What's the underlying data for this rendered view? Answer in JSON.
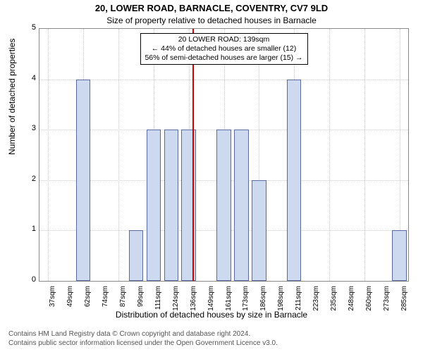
{
  "chart": {
    "type": "histogram",
    "title_main": "20, LOWER ROAD, BARNACLE, COVENTRY, CV7 9LD",
    "title_sub": "Size of property relative to detached houses in Barnacle",
    "xlabel": "Distribution of detached houses by size in Barnacle",
    "ylabel": "Number of detached properties",
    "ylim": [
      0,
      5
    ],
    "ytick_step": 1,
    "bar_fill": "#cdd9ef",
    "bar_stroke": "#5a6aa0",
    "background_color": "#ffffff",
    "grid_color": "#cccccc",
    "border_color": "#888888",
    "marker_value": 139,
    "marker_color": "#d00000",
    "title_fontsize": 13,
    "label_fontsize": 12,
    "tick_fontsize": 10,
    "xticks": [
      "37sqm",
      "49sqm",
      "62sqm",
      "74sqm",
      "87sqm",
      "99sqm",
      "111sqm",
      "124sqm",
      "136sqm",
      "149sqm",
      "161sqm",
      "173sqm",
      "186sqm",
      "198sqm",
      "211sqm",
      "223sqm",
      "235sqm",
      "248sqm",
      "260sqm",
      "273sqm",
      "285sqm"
    ],
    "values": [
      0,
      0,
      4,
      0,
      0,
      1,
      3,
      3,
      3,
      0,
      3,
      3,
      2,
      0,
      4,
      0,
      0,
      0,
      0,
      0,
      1
    ],
    "annotation": {
      "line1": "20 LOWER ROAD: 139sqm",
      "line2": "← 44% of detached houses are smaller (12)",
      "line3": "56% of semi-detached houses are larger (15) →"
    }
  },
  "footer": {
    "line1": "Contains HM Land Registry data © Crown copyright and database right 2024.",
    "line2": "Contains public sector information licensed under the Open Government Licence v3.0."
  }
}
